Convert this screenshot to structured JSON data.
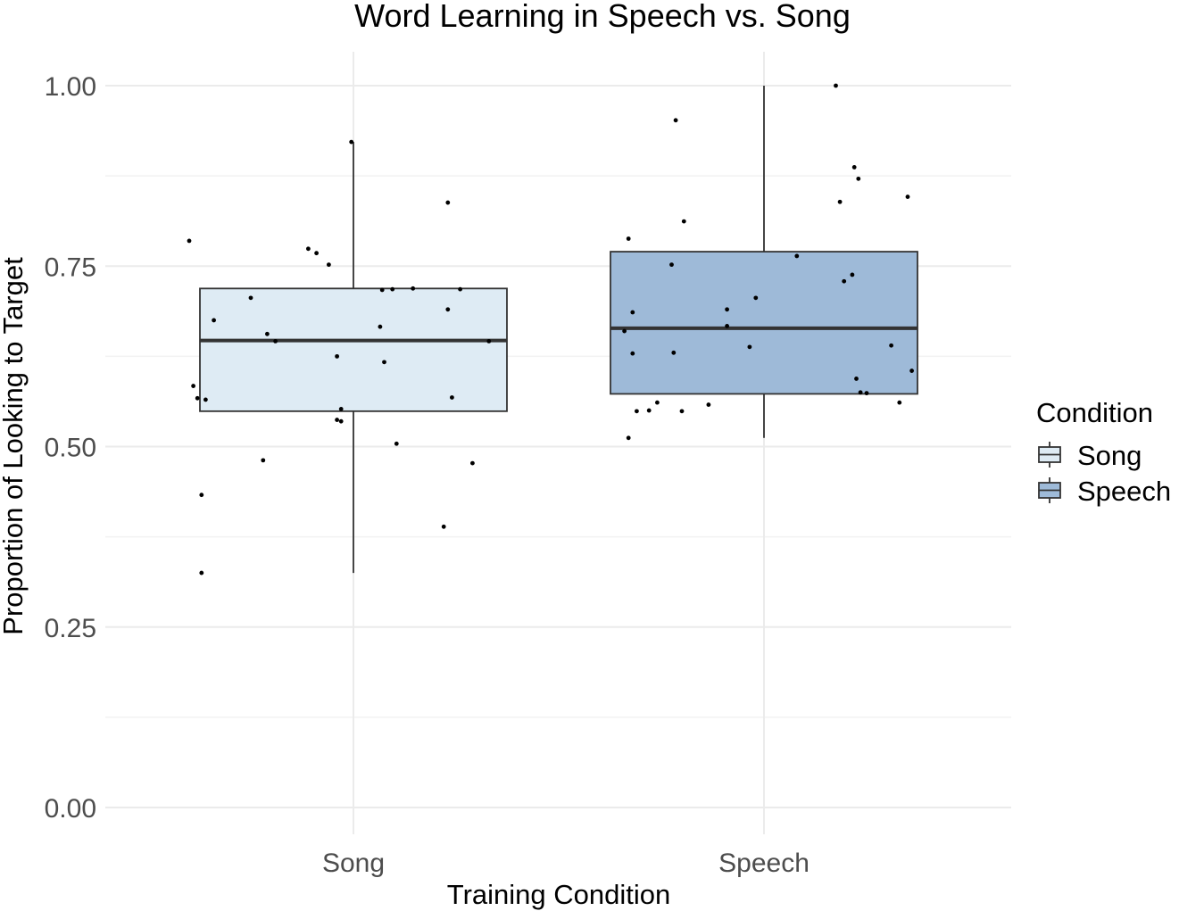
{
  "chart_data": {
    "type": "box",
    "title": "Word Learning in Speech vs. Song",
    "xlabel": "Training Condition",
    "ylabel": "Proportion of Looking to Target",
    "ylim": [
      0,
      1.04
    ],
    "yticks": [
      0.0,
      0.25,
      0.5,
      0.75,
      1.0
    ],
    "ytick_labels": [
      "0.00",
      "0.25",
      "0.50",
      "0.75",
      "1.00"
    ],
    "categories": [
      "Song",
      "Speech"
    ],
    "grid": true,
    "legend": {
      "title": "Condition",
      "position": "right",
      "entries": [
        "Song",
        "Speech"
      ]
    },
    "series": [
      {
        "name": "Song",
        "color": "#deebf4",
        "stats": {
          "min": 0.325,
          "q1": 0.549,
          "median": 0.647,
          "q3": 0.719,
          "max": 0.922
        },
        "points": [
          [
            -0.4,
            0.785
          ],
          [
            -0.39,
            0.584
          ],
          [
            -0.38,
            0.567
          ],
          [
            -0.37,
            0.433
          ],
          [
            -0.37,
            0.325
          ],
          [
            -0.36,
            0.565
          ],
          [
            -0.34,
            0.675
          ],
          [
            -0.25,
            0.706
          ],
          [
            -0.22,
            0.481
          ],
          [
            -0.21,
            0.656
          ],
          [
            -0.19,
            0.646
          ],
          [
            -0.11,
            0.774
          ],
          [
            -0.09,
            0.768
          ],
          [
            -0.06,
            0.752
          ],
          [
            -0.04,
            0.625
          ],
          [
            -0.04,
            0.537
          ],
          [
            -0.03,
            0.552
          ],
          [
            -0.03,
            0.535
          ],
          [
            -0.005,
            0.922
          ],
          [
            0.065,
            0.666
          ],
          [
            0.07,
            0.717
          ],
          [
            0.075,
            0.617
          ],
          [
            0.095,
            0.718
          ],
          [
            0.105,
            0.504
          ],
          [
            0.145,
            0.719
          ],
          [
            0.22,
            0.389
          ],
          [
            0.23,
            0.838
          ],
          [
            0.23,
            0.69
          ],
          [
            0.24,
            0.568
          ],
          [
            0.26,
            0.718
          ],
          [
            0.29,
            0.477
          ],
          [
            0.33,
            0.646
          ]
        ]
      },
      {
        "name": "Speech",
        "color": "#9ebad8",
        "stats": {
          "min": 0.512,
          "q1": 0.573,
          "median": 0.664,
          "q3": 0.77,
          "max": 1.0
        },
        "points": [
          [
            -0.34,
            0.66
          ],
          [
            -0.33,
            0.788
          ],
          [
            -0.33,
            0.512
          ],
          [
            -0.32,
            0.686
          ],
          [
            -0.32,
            0.629
          ],
          [
            -0.31,
            0.549
          ],
          [
            -0.28,
            0.55
          ],
          [
            -0.26,
            0.561
          ],
          [
            -0.225,
            0.752
          ],
          [
            -0.22,
            0.63
          ],
          [
            -0.215,
            0.952
          ],
          [
            -0.2,
            0.549
          ],
          [
            -0.195,
            0.812
          ],
          [
            -0.135,
            0.558
          ],
          [
            -0.09,
            0.667
          ],
          [
            -0.09,
            0.69
          ],
          [
            -0.035,
            0.638
          ],
          [
            -0.02,
            0.706
          ],
          [
            0.08,
            0.764
          ],
          [
            0.175,
            1.0
          ],
          [
            0.185,
            0.839
          ],
          [
            0.195,
            0.729
          ],
          [
            0.215,
            0.738
          ],
          [
            0.22,
            0.887
          ],
          [
            0.225,
            0.594
          ],
          [
            0.23,
            0.871
          ],
          [
            0.235,
            0.575
          ],
          [
            0.25,
            0.574
          ],
          [
            0.31,
            0.64
          ],
          [
            0.33,
            0.561
          ],
          [
            0.35,
            0.846
          ],
          [
            0.36,
            0.605
          ]
        ]
      }
    ]
  }
}
